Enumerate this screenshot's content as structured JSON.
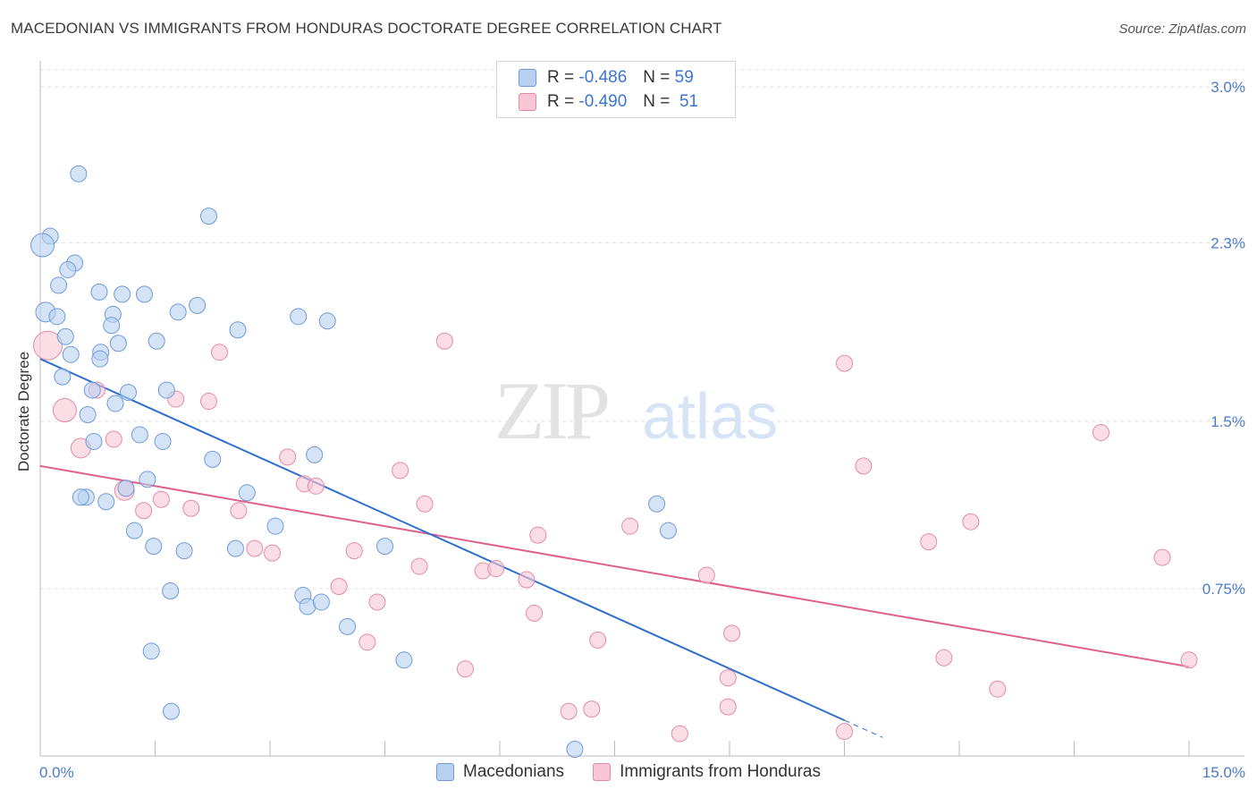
{
  "title": "MACEDONIAN VS IMMIGRANTS FROM HONDURAS DOCTORATE DEGREE CORRELATION CHART",
  "source": "Source: ZipAtlas.com",
  "watermark": {
    "zip": "ZIP",
    "atlas": "atlas"
  },
  "legend": {
    "rows": [
      {
        "r_label": "R =",
        "r_value": "-0.486",
        "n_label": "N =",
        "n_value": "59"
      },
      {
        "r_label": "R =",
        "r_value": "-0.490",
        "n_label": "N =",
        "n_value": "51"
      }
    ]
  },
  "bottom_legend": {
    "series1": "Macedonians",
    "series2": "Immigrants from Honduras"
  },
  "colors": {
    "blue_fill": "#b8d1f0",
    "blue_stroke": "#6f9bd8",
    "blue_line": "#2f6fce",
    "pink_fill": "#f8c6d4",
    "pink_stroke": "#e48aa6",
    "pink_line": "#e0608d",
    "tick_text": "#4a7cc9",
    "grid": "#e3e3e3"
  },
  "chart_data": {
    "type": "scatter",
    "title": "MACEDONIAN VS IMMIGRANTS FROM HONDURAS DOCTORATE DEGREE CORRELATION CHART",
    "xlabel": "",
    "ylabel": "Doctorate Degree",
    "xlim": [
      0,
      15
    ],
    "ylim": [
      0,
      3.0
    ],
    "x_tick_labels": [
      "0.0%",
      "15.0%"
    ],
    "y_ticks": [
      0.75,
      1.5,
      2.3,
      3.0
    ],
    "y_tick_labels": [
      "0.75%",
      "1.5%",
      "2.3%",
      "3.0%"
    ],
    "series": [
      {
        "name": "Macedonians",
        "color": "#6f9bd8",
        "r": -0.486,
        "n": 59,
        "trend": {
          "x0": 0.0,
          "y0": 1.78,
          "x1": 10.5,
          "y1": 0.16,
          "dash_to_x": 11.0
        },
        "points": [
          {
            "x": 0.5,
            "y": 2.61,
            "s": 9
          },
          {
            "x": 2.2,
            "y": 2.42,
            "s": 9
          },
          {
            "x": 0.13,
            "y": 2.33,
            "s": 9
          },
          {
            "x": 0.03,
            "y": 2.29,
            "s": 13
          },
          {
            "x": 0.45,
            "y": 2.21,
            "s": 9
          },
          {
            "x": 0.36,
            "y": 2.18,
            "s": 9
          },
          {
            "x": 0.24,
            "y": 2.11,
            "s": 9
          },
          {
            "x": 0.77,
            "y": 2.08,
            "s": 9
          },
          {
            "x": 1.07,
            "y": 2.07,
            "s": 9
          },
          {
            "x": 1.36,
            "y": 2.07,
            "s": 9
          },
          {
            "x": 0.07,
            "y": 1.99,
            "s": 11
          },
          {
            "x": 2.05,
            "y": 2.02,
            "s": 9
          },
          {
            "x": 1.8,
            "y": 1.99,
            "s": 9
          },
          {
            "x": 0.22,
            "y": 1.97,
            "s": 9
          },
          {
            "x": 0.95,
            "y": 1.98,
            "s": 9
          },
          {
            "x": 3.37,
            "y": 1.97,
            "s": 9
          },
          {
            "x": 3.75,
            "y": 1.95,
            "s": 9
          },
          {
            "x": 0.93,
            "y": 1.93,
            "s": 9
          },
          {
            "x": 2.58,
            "y": 1.91,
            "s": 9
          },
          {
            "x": 0.33,
            "y": 1.88,
            "s": 9
          },
          {
            "x": 1.52,
            "y": 1.86,
            "s": 9
          },
          {
            "x": 1.02,
            "y": 1.85,
            "s": 9
          },
          {
            "x": 0.79,
            "y": 1.81,
            "s": 9
          },
          {
            "x": 0.4,
            "y": 1.8,
            "s": 9
          },
          {
            "x": 0.78,
            "y": 1.78,
            "s": 9
          },
          {
            "x": 0.29,
            "y": 1.7,
            "s": 9
          },
          {
            "x": 0.68,
            "y": 1.64,
            "s": 9
          },
          {
            "x": 1.15,
            "y": 1.63,
            "s": 9
          },
          {
            "x": 1.65,
            "y": 1.64,
            "s": 9
          },
          {
            "x": 0.98,
            "y": 1.58,
            "s": 9
          },
          {
            "x": 0.62,
            "y": 1.53,
            "s": 9
          },
          {
            "x": 1.3,
            "y": 1.44,
            "s": 9
          },
          {
            "x": 0.7,
            "y": 1.41,
            "s": 9
          },
          {
            "x": 1.6,
            "y": 1.41,
            "s": 9
          },
          {
            "x": 3.58,
            "y": 1.35,
            "s": 9
          },
          {
            "x": 2.25,
            "y": 1.33,
            "s": 9
          },
          {
            "x": 1.4,
            "y": 1.24,
            "s": 9
          },
          {
            "x": 1.12,
            "y": 1.2,
            "s": 9
          },
          {
            "x": 2.7,
            "y": 1.18,
            "s": 9
          },
          {
            "x": 0.6,
            "y": 1.16,
            "s": 9
          },
          {
            "x": 0.53,
            "y": 1.16,
            "s": 9
          },
          {
            "x": 0.86,
            "y": 1.14,
            "s": 9
          },
          {
            "x": 8.05,
            "y": 1.13,
            "s": 9
          },
          {
            "x": 3.07,
            "y": 1.03,
            "s": 9
          },
          {
            "x": 1.23,
            "y": 1.01,
            "s": 9
          },
          {
            "x": 8.2,
            "y": 1.01,
            "s": 9
          },
          {
            "x": 4.5,
            "y": 0.94,
            "s": 9
          },
          {
            "x": 1.48,
            "y": 0.94,
            "s": 9
          },
          {
            "x": 1.88,
            "y": 0.92,
            "s": 9
          },
          {
            "x": 2.55,
            "y": 0.93,
            "s": 9
          },
          {
            "x": 1.7,
            "y": 0.74,
            "s": 9
          },
          {
            "x": 3.43,
            "y": 0.72,
            "s": 9
          },
          {
            "x": 3.49,
            "y": 0.67,
            "s": 9
          },
          {
            "x": 3.67,
            "y": 0.69,
            "s": 9
          },
          {
            "x": 4.01,
            "y": 0.58,
            "s": 9
          },
          {
            "x": 1.45,
            "y": 0.47,
            "s": 9
          },
          {
            "x": 4.75,
            "y": 0.43,
            "s": 9
          },
          {
            "x": 1.71,
            "y": 0.2,
            "s": 9
          },
          {
            "x": 6.98,
            "y": 0.03,
            "s": 9
          }
        ]
      },
      {
        "name": "Immigrants from Honduras",
        "color": "#e48aa6",
        "r": -0.49,
        "n": 51,
        "trend": {
          "x0": 0.0,
          "y0": 1.3,
          "x1": 15.0,
          "y1": 0.4
        },
        "points": [
          {
            "x": 0.1,
            "y": 1.84,
            "s": 16
          },
          {
            "x": 2.34,
            "y": 1.81,
            "s": 9
          },
          {
            "x": 5.28,
            "y": 1.86,
            "s": 9
          },
          {
            "x": 10.5,
            "y": 1.76,
            "s": 9
          },
          {
            "x": 0.74,
            "y": 1.64,
            "s": 9
          },
          {
            "x": 1.77,
            "y": 1.6,
            "s": 9
          },
          {
            "x": 2.2,
            "y": 1.59,
            "s": 9
          },
          {
            "x": 0.32,
            "y": 1.55,
            "s": 13
          },
          {
            "x": 13.85,
            "y": 1.45,
            "s": 9
          },
          {
            "x": 0.96,
            "y": 1.42,
            "s": 9
          },
          {
            "x": 0.53,
            "y": 1.38,
            "s": 11
          },
          {
            "x": 3.23,
            "y": 1.34,
            "s": 9
          },
          {
            "x": 10.75,
            "y": 1.3,
            "s": 9
          },
          {
            "x": 4.7,
            "y": 1.28,
            "s": 9
          },
          {
            "x": 3.45,
            "y": 1.22,
            "s": 9
          },
          {
            "x": 3.6,
            "y": 1.21,
            "s": 9
          },
          {
            "x": 1.1,
            "y": 1.19,
            "s": 11
          },
          {
            "x": 1.58,
            "y": 1.15,
            "s": 9
          },
          {
            "x": 5.02,
            "y": 1.13,
            "s": 9
          },
          {
            "x": 1.35,
            "y": 1.1,
            "s": 9
          },
          {
            "x": 1.97,
            "y": 1.11,
            "s": 9
          },
          {
            "x": 2.59,
            "y": 1.1,
            "s": 9
          },
          {
            "x": 12.15,
            "y": 1.05,
            "s": 9
          },
          {
            "x": 7.7,
            "y": 1.03,
            "s": 9
          },
          {
            "x": 6.5,
            "y": 0.99,
            "s": 9
          },
          {
            "x": 11.6,
            "y": 0.96,
            "s": 9
          },
          {
            "x": 2.8,
            "y": 0.93,
            "s": 9
          },
          {
            "x": 3.03,
            "y": 0.91,
            "s": 9
          },
          {
            "x": 4.1,
            "y": 0.92,
            "s": 9
          },
          {
            "x": 14.65,
            "y": 0.89,
            "s": 9
          },
          {
            "x": 4.95,
            "y": 0.85,
            "s": 9
          },
          {
            "x": 5.78,
            "y": 0.83,
            "s": 9
          },
          {
            "x": 5.95,
            "y": 0.84,
            "s": 9
          },
          {
            "x": 8.7,
            "y": 0.81,
            "s": 9
          },
          {
            "x": 6.35,
            "y": 0.79,
            "s": 9
          },
          {
            "x": 3.9,
            "y": 0.76,
            "s": 9
          },
          {
            "x": 4.4,
            "y": 0.69,
            "s": 9
          },
          {
            "x": 6.45,
            "y": 0.64,
            "s": 9
          },
          {
            "x": 9.03,
            "y": 0.55,
            "s": 9
          },
          {
            "x": 7.28,
            "y": 0.52,
            "s": 9
          },
          {
            "x": 4.27,
            "y": 0.51,
            "s": 9
          },
          {
            "x": 11.8,
            "y": 0.44,
            "s": 9
          },
          {
            "x": 15.0,
            "y": 0.43,
            "s": 9
          },
          {
            "x": 5.55,
            "y": 0.39,
            "s": 9
          },
          {
            "x": 8.98,
            "y": 0.35,
            "s": 9
          },
          {
            "x": 12.5,
            "y": 0.3,
            "s": 9
          },
          {
            "x": 8.98,
            "y": 0.22,
            "s": 9
          },
          {
            "x": 7.2,
            "y": 0.21,
            "s": 9
          },
          {
            "x": 6.9,
            "y": 0.2,
            "s": 9
          },
          {
            "x": 10.5,
            "y": 0.11,
            "s": 9
          },
          {
            "x": 8.35,
            "y": 0.1,
            "s": 9
          }
        ]
      }
    ]
  }
}
